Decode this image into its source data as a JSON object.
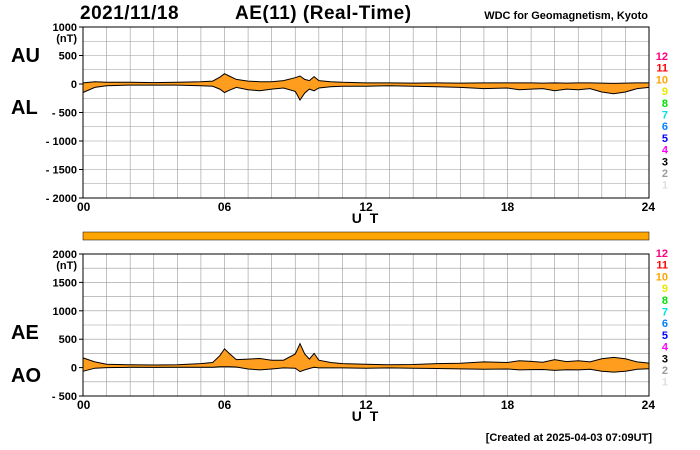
{
  "header": {
    "date": "2021/11/18",
    "title": "AE(11) (Real-Time)",
    "source": "WDC for Geomagnetism, Kyoto"
  },
  "footer": {
    "created": "[Created at 2025-04-03 07:09UT]"
  },
  "colors": {
    "fill": "#ff9d1e",
    "grid": "#9a9a9a",
    "bar": "#ffa500",
    "hours_legend": [
      "#ffffff",
      "#e0e0e0",
      "#9a9a9a",
      "#000000",
      "#ff00ff",
      "#0000ff",
      "#0080ff",
      "#00e0e0",
      "#00e000",
      "#e8e800",
      "#ffa500",
      "#ff0000",
      "#ff0080"
    ]
  },
  "chart_data": [
    {
      "type": "area",
      "panel": "AU/AL",
      "series_labels": [
        "AU",
        "AL"
      ],
      "unit": "(nT)",
      "xlabel": "U T",
      "xlim": [
        0,
        24
      ],
      "xticks": [
        "00",
        "06",
        "12",
        "18",
        "24"
      ],
      "ylim": [
        -2000,
        1000
      ],
      "yticks": [
        "1000",
        "500",
        "0",
        "- 500",
        "- 1000",
        "- 1500",
        "- 2000"
      ],
      "grid": true,
      "hour_legend": [
        "12",
        "11",
        "10",
        "9",
        "8",
        "7",
        "6",
        "5",
        "4",
        "3",
        "2",
        "1"
      ],
      "x": [
        0,
        0.5,
        1,
        2,
        3,
        4,
        5,
        5.5,
        5.8,
        6,
        6.2,
        6.5,
        7,
        7.5,
        8,
        8.5,
        9,
        9.2,
        9.4,
        9.6,
        9.8,
        10,
        10.5,
        11,
        12,
        13,
        14,
        15,
        16,
        17,
        18,
        18.5,
        19,
        19.5,
        20,
        20.5,
        21,
        21.5,
        22,
        22.5,
        23,
        23.5,
        24
      ],
      "series": [
        {
          "name": "AU",
          "values": [
            20,
            40,
            30,
            30,
            25,
            30,
            40,
            50,
            120,
            180,
            140,
            80,
            50,
            40,
            40,
            60,
            110,
            140,
            80,
            60,
            130,
            60,
            40,
            30,
            20,
            20,
            15,
            20,
            15,
            20,
            20,
            20,
            20,
            15,
            20,
            15,
            20,
            20,
            15,
            10,
            15,
            20,
            20
          ]
        },
        {
          "name": "AL",
          "values": [
            -150,
            -60,
            -30,
            -20,
            -20,
            -20,
            -30,
            -40,
            -90,
            -150,
            -110,
            -60,
            -100,
            -120,
            -90,
            -70,
            -130,
            -280,
            -160,
            -90,
            -120,
            -70,
            -50,
            -40,
            -40,
            -30,
            -40,
            -50,
            -60,
            -80,
            -70,
            -100,
            -90,
            -80,
            -120,
            -90,
            -100,
            -80,
            -140,
            -170,
            -140,
            -80,
            -60
          ]
        }
      ]
    },
    {
      "type": "area",
      "panel": "AE/AO",
      "series_labels": [
        "AE",
        "AO"
      ],
      "unit": "(nT)",
      "xlabel": "U T",
      "xlim": [
        0,
        24
      ],
      "xticks": [
        "00",
        "06",
        "12",
        "18",
        "24"
      ],
      "ylim": [
        -500,
        2000
      ],
      "yticks": [
        "2000",
        "1500",
        "1000",
        "500",
        "0",
        "- 500"
      ],
      "grid": true,
      "hour_legend": [
        "12",
        "11",
        "10",
        "9",
        "8",
        "7",
        "6",
        "5",
        "4",
        "3",
        "2",
        "1"
      ],
      "x": [
        0,
        0.5,
        1,
        2,
        3,
        4,
        5,
        5.5,
        5.8,
        6,
        6.2,
        6.5,
        7,
        7.5,
        8,
        8.5,
        9,
        9.2,
        9.4,
        9.6,
        9.8,
        10,
        10.5,
        11,
        12,
        13,
        14,
        15,
        16,
        17,
        18,
        18.5,
        19,
        19.5,
        20,
        20.5,
        21,
        21.5,
        22,
        22.5,
        23,
        23.5,
        24
      ],
      "series": [
        {
          "name": "AE",
          "values": [
            170,
            100,
            60,
            50,
            45,
            50,
            70,
            90,
            210,
            330,
            250,
            140,
            150,
            160,
            130,
            130,
            240,
            420,
            240,
            150,
            250,
            130,
            90,
            70,
            60,
            50,
            55,
            70,
            75,
            100,
            90,
            120,
            110,
            95,
            140,
            105,
            120,
            100,
            155,
            180,
            155,
            100,
            80
          ]
        },
        {
          "name": "AO",
          "values": [
            -65,
            -10,
            0,
            5,
            3,
            5,
            5,
            5,
            15,
            15,
            15,
            10,
            -25,
            -40,
            -25,
            -5,
            -10,
            -70,
            -40,
            -15,
            5,
            -5,
            -5,
            -5,
            -10,
            -5,
            -13,
            -15,
            -23,
            -30,
            -25,
            -40,
            -35,
            -33,
            -50,
            -38,
            -40,
            -30,
            -63,
            -80,
            -63,
            -30,
            -20
          ]
        }
      ]
    }
  ]
}
